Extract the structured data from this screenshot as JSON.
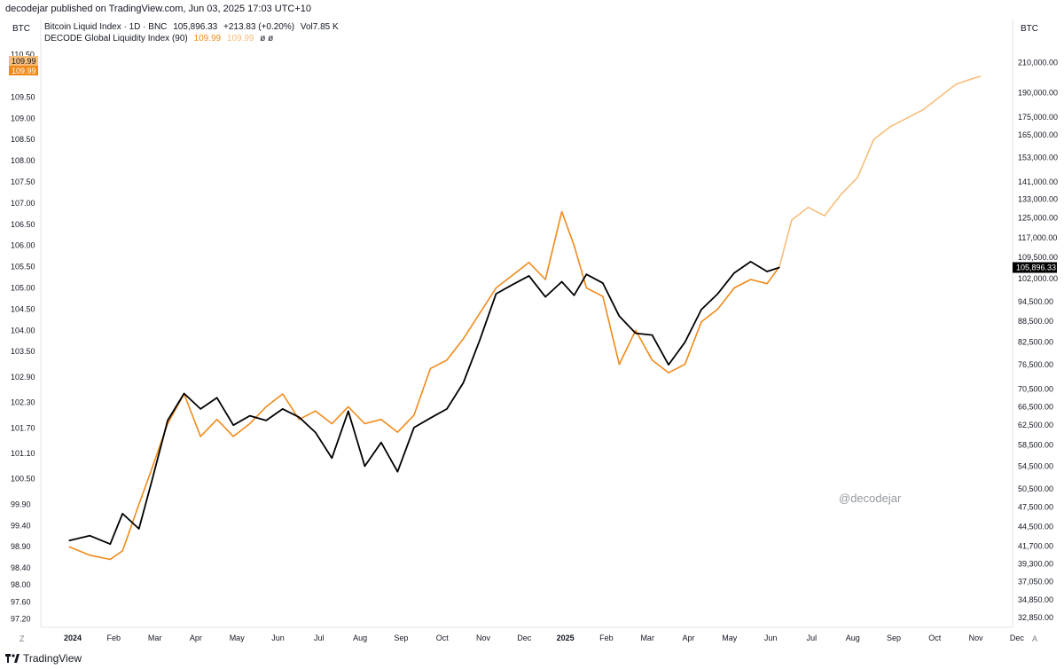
{
  "header": {
    "published": "decodejar published on TradingView.com, Jun 03, 2025 17:03 UTC+10"
  },
  "axis_unit_left": "BTC",
  "axis_unit_right": "BTC",
  "legend": {
    "btc": {
      "name": "Bitcoin Liquid Index · 1D · BNC",
      "value": "105,896.33",
      "change": "+213.83 (+0.20%)",
      "vol": "Vol7.85 K"
    },
    "gli": {
      "name": "DECODE Global Liquidity Index (90)",
      "value1": "109.99",
      "value2": "109.99",
      "extra": "ø ø"
    }
  },
  "watermark": "@decodejar",
  "footer_brand": "TradingView",
  "corner_left": "Z",
  "corner_right": "A",
  "colors": {
    "gli": "#f08a1a",
    "gli_projection": "#f7bd7a",
    "btc": "#000000",
    "grid": "#ffffff",
    "axis_line": "#e0e3eb"
  },
  "chart_data": {
    "type": "line",
    "title": "",
    "x_ticks": [
      "2024",
      "Feb",
      "Mar",
      "Apr",
      "May",
      "Jun",
      "Jul",
      "Aug",
      "Sep",
      "Oct",
      "Nov",
      "Dec",
      "2025",
      "Feb",
      "Mar",
      "Apr",
      "May",
      "Jun",
      "Jul",
      "Aug",
      "Sep",
      "Oct",
      "Nov",
      "Dec"
    ],
    "left_axis": {
      "ticks": [
        "110.50",
        "109.50",
        "109.00",
        "108.50",
        "108.00",
        "107.50",
        "107.00",
        "106.50",
        "106.00",
        "105.50",
        "105.00",
        "104.50",
        "104.00",
        "103.50",
        "102.90",
        "102.30",
        "101.70",
        "101.10",
        "100.50",
        "99.90",
        "99.40",
        "98.90",
        "98.40",
        "98.00",
        "97.60",
        "97.20"
      ],
      "labels_highlight": [
        "109.99",
        "109.99"
      ]
    },
    "right_axis": {
      "scale": "log",
      "ticks": [
        "210,000.00",
        "190,000.00",
        "175,000.00",
        "165,000.00",
        "153,000.00",
        "141,000.00",
        "133,000.00",
        "125,000.00",
        "117,000.00",
        "109,500.00",
        "102,000.00",
        "94,500.00",
        "88,500.00",
        "82,500.00",
        "76,500.00",
        "70,500.00",
        "66,500.00",
        "62,500.00",
        "58,500.00",
        "54,500.00",
        "50,500.00",
        "47,500.00",
        "44,500.00",
        "41,700.00",
        "39,300.00",
        "37,050.00",
        "34,850.00",
        "32,850.00"
      ],
      "last_price_label": "105,896.33"
    },
    "series": [
      {
        "name": "DECODE Global Liquidity Index (90)",
        "color": "#f08a1a",
        "x": [
          0,
          0.5,
          1,
          1.3,
          1.7,
          2,
          2.4,
          2.8,
          3.2,
          3.6,
          4,
          4.4,
          4.8,
          5.2,
          5.6,
          6,
          6.4,
          6.8,
          7.2,
          7.6,
          8,
          8.4,
          8.8,
          9.2,
          9.6,
          10,
          10.4,
          10.8,
          11.2,
          11.6,
          12,
          12.3,
          12.6,
          13,
          13.4,
          13.8,
          14.2,
          14.6,
          15,
          15.4,
          15.8,
          16.2,
          16.6,
          17,
          17.3
        ],
        "y": [
          98.9,
          98.7,
          98.6,
          98.8,
          99.9,
          100.7,
          101.8,
          102.5,
          101.5,
          101.9,
          101.5,
          101.8,
          102.2,
          102.5,
          101.9,
          102.1,
          101.8,
          102.2,
          101.8,
          101.9,
          101.6,
          102.0,
          103.1,
          103.3,
          103.8,
          104.4,
          105.0,
          105.3,
          105.6,
          105.2,
          106.8,
          106.0,
          105.0,
          104.8,
          103.2,
          104.0,
          103.3,
          103.0,
          103.2,
          104.2,
          104.5,
          105.0,
          105.2,
          105.1,
          105.5
        ]
      },
      {
        "name": "DECODE Global Liquidity Index (90) projection",
        "color": "#f7bd7a",
        "x": [
          17.3,
          17.6,
          18,
          18.4,
          18.8,
          19.2,
          19.6,
          20,
          20.4,
          20.8,
          21.2,
          21.6,
          21.9,
          22.2
        ],
        "y": [
          105.5,
          106.6,
          106.9,
          106.7,
          107.2,
          107.6,
          108.5,
          108.8,
          109.0,
          109.2,
          109.5,
          109.8,
          109.9,
          109.99
        ]
      },
      {
        "name": "Bitcoin Liquid Index",
        "color": "#000000",
        "x": [
          0,
          0.5,
          1,
          1.3,
          1.7,
          2,
          2.4,
          2.8,
          3.2,
          3.6,
          4,
          4.4,
          4.8,
          5.2,
          5.6,
          6,
          6.4,
          6.8,
          7.2,
          7.6,
          8,
          8.4,
          8.8,
          9.2,
          9.6,
          10,
          10.4,
          10.8,
          11.2,
          11.6,
          12,
          12.3,
          12.6,
          13,
          13.4,
          13.8,
          14.2,
          14.6,
          15,
          15.4,
          15.8,
          16.2,
          16.6,
          17,
          17.3
        ],
        "y": [
          42500,
          43200,
          42000,
          46500,
          44200,
          51500,
          63500,
          69500,
          66000,
          68500,
          62500,
          64500,
          63500,
          66000,
          64200,
          61000,
          56000,
          65500,
          54500,
          59000,
          53500,
          62000,
          64000,
          66000,
          72000,
          83000,
          97000,
          100000,
          103000,
          96000,
          101000,
          96500,
          103500,
          100500,
          90000,
          85000,
          84500,
          76500,
          82500,
          92000,
          97000,
          104000,
          108000,
          104500,
          105896
        ]
      }
    ]
  }
}
